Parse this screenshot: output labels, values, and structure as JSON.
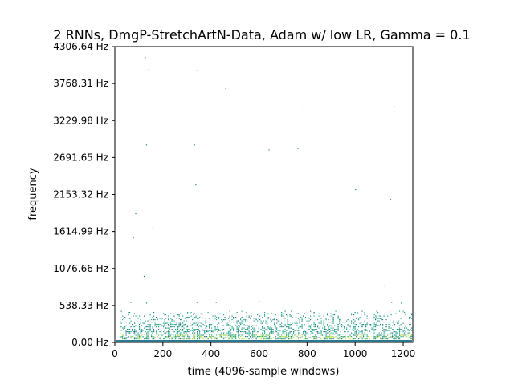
{
  "chart_data": {
    "type": "heatmap",
    "title": "2 RNNs, DmgP-StretchArtN-Data, Adam w/ low LR, Gamma = 0.1",
    "xlabel": "time (4096-sample windows)",
    "ylabel": "frequency",
    "xlim": [
      0,
      1240
    ],
    "ylim": [
      0,
      4306.64
    ],
    "x_ticks": [
      0,
      200,
      400,
      600,
      800,
      1000,
      1200
    ],
    "x_tick_labels": [
      "0",
      "200",
      "400",
      "600",
      "800",
      "1000",
      "1200"
    ],
    "y_ticks": [
      0,
      538.33,
      1076.66,
      1614.99,
      2153.32,
      2691.65,
      3229.98,
      3768.31,
      4306.64
    ],
    "y_tick_labels": [
      "0.00 Hz",
      "538.33 Hz",
      "1076.66 Hz",
      "1614.99 Hz",
      "2153.32 Hz",
      "2691.65 Hz",
      "3229.98 Hz",
      "3768.31 Hz",
      "4306.64 Hz"
    ],
    "grid": false,
    "colors": {
      "low": "#2a788e",
      "mid": "#22a884",
      "high": "#7ad151",
      "peak": "#bddf26"
    },
    "sparse_points": [
      {
        "x": 125,
        "y": 4150
      },
      {
        "x": 140,
        "y": 3980
      },
      {
        "x": 340,
        "y": 3960
      },
      {
        "x": 460,
        "y": 3700
      },
      {
        "x": 785,
        "y": 3440
      },
      {
        "x": 1160,
        "y": 3440
      },
      {
        "x": 130,
        "y": 2880
      },
      {
        "x": 330,
        "y": 2880
      },
      {
        "x": 640,
        "y": 2810
      },
      {
        "x": 760,
        "y": 2830
      },
      {
        "x": 335,
        "y": 2300
      },
      {
        "x": 1000,
        "y": 2230
      },
      {
        "x": 1145,
        "y": 2090
      },
      {
        "x": 85,
        "y": 1880
      },
      {
        "x": 155,
        "y": 1660
      },
      {
        "x": 75,
        "y": 1530
      },
      {
        "x": 120,
        "y": 970
      },
      {
        "x": 140,
        "y": 960
      },
      {
        "x": 1120,
        "y": 830
      },
      {
        "x": 65,
        "y": 590
      },
      {
        "x": 130,
        "y": 580
      },
      {
        "x": 340,
        "y": 590
      },
      {
        "x": 420,
        "y": 590
      },
      {
        "x": 600,
        "y": 600
      },
      {
        "x": 1150,
        "y": 590
      },
      {
        "x": 1190,
        "y": 580
      }
    ],
    "dense_band": {
      "y_max": 470,
      "x_start": 0,
      "x_end": 1240
    }
  }
}
